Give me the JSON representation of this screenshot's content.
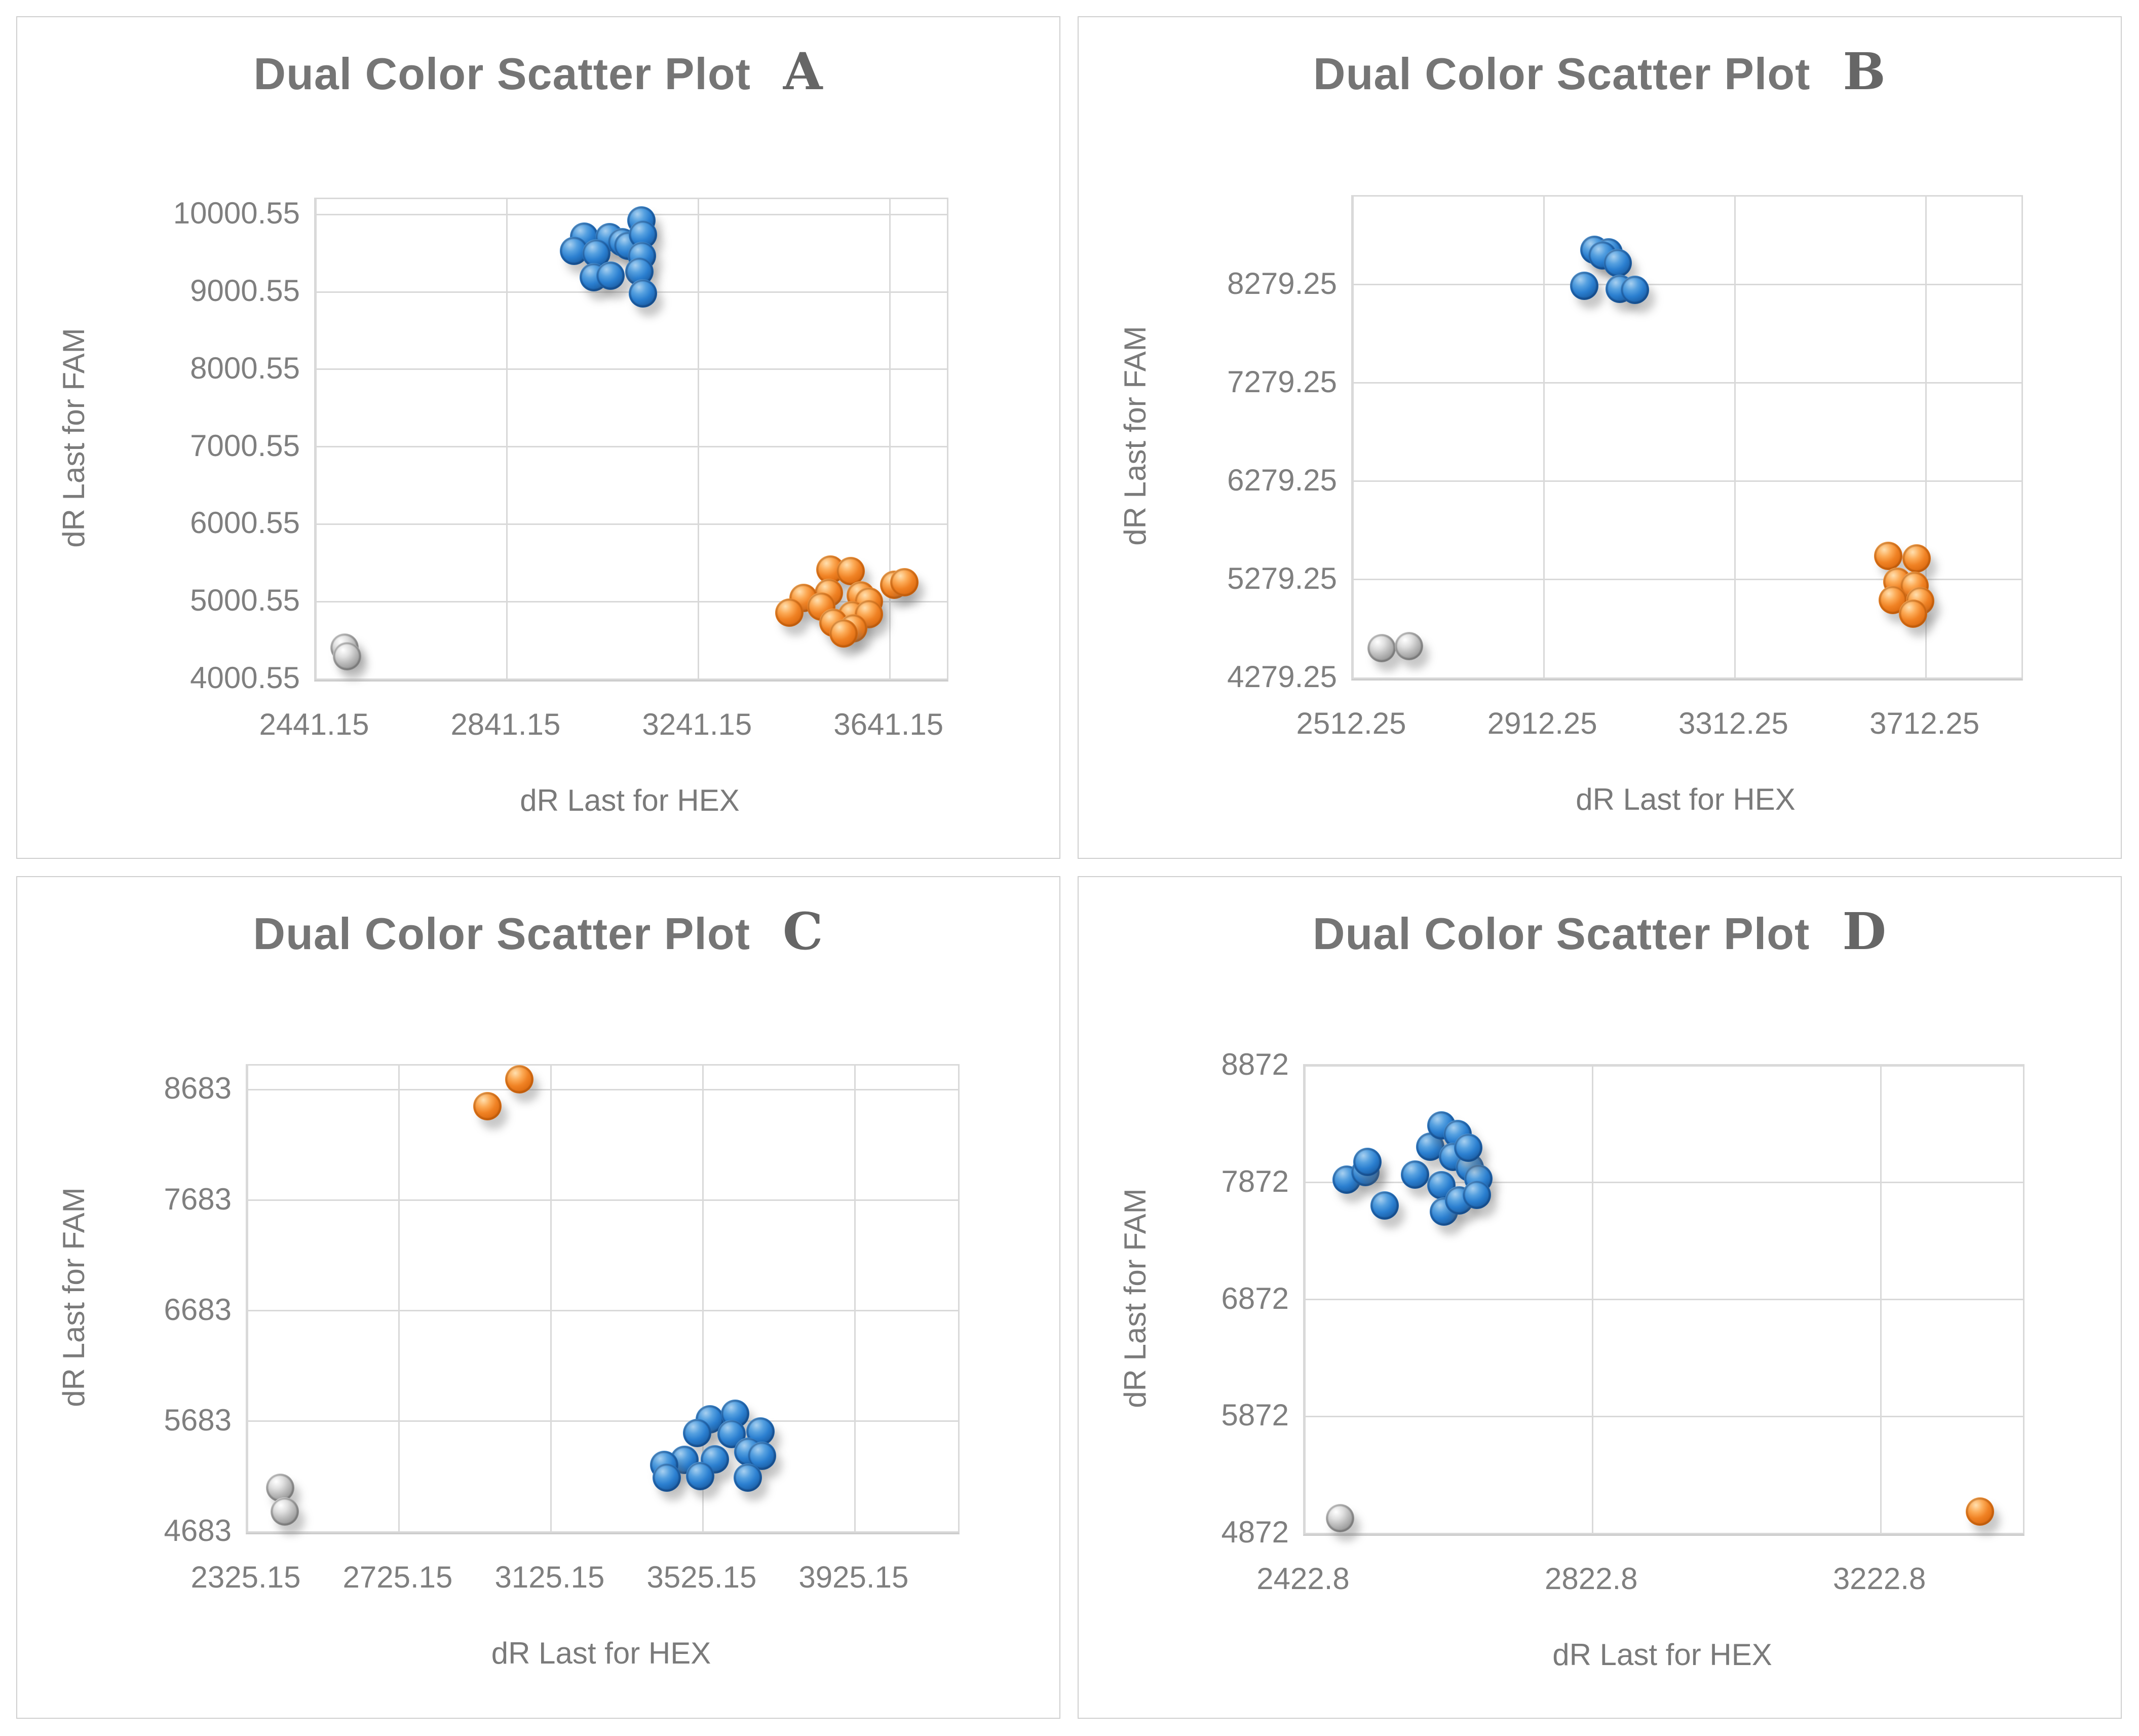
{
  "colors": {
    "blue": "#2E75B6",
    "orange": "#ED7D31",
    "gray": "#A6A6A6",
    "gridline": "#D9D9D9",
    "text": "#7F7F7F"
  },
  "chart_data": [
    {
      "type": "scatter",
      "title": "Dual Color Scatter Plot",
      "panel_letter": "A",
      "xlabel": "dR Last for HEX",
      "ylabel": "dR Last for FAM",
      "xlim": [
        2441.15,
        3760
      ],
      "ylim": [
        4000.55,
        10200
      ],
      "grid": true,
      "legend_position": "none",
      "xticks": [
        {
          "value": 2441.15,
          "label": "2441.15"
        },
        {
          "value": 2841.15,
          "label": "2841.15"
        },
        {
          "value": 3241.15,
          "label": "3241.15"
        },
        {
          "value": 3641.15,
          "label": "3641.15"
        }
      ],
      "yticks": [
        {
          "value": 4000.55,
          "label": "4000.55"
        },
        {
          "value": 5000.55,
          "label": "5000.55"
        },
        {
          "value": 6000.55,
          "label": "6000.55"
        },
        {
          "value": 7000.55,
          "label": "7000.55"
        },
        {
          "value": 8000.55,
          "label": "8000.55"
        },
        {
          "value": 9000.55,
          "label": "9000.55"
        },
        {
          "value": 10000.55,
          "label": "10000.55"
        }
      ],
      "series": [
        {
          "name": "gray",
          "color": "#A6A6A6",
          "points": [
            [
              2502,
              4409
            ],
            [
              2507,
              4292
            ]
          ]
        },
        {
          "name": "orange",
          "color": "#ED7D31",
          "points": [
            [
              3517,
              5415
            ],
            [
              3559,
              5395
            ],
            [
              3513,
              5112
            ],
            [
              3460,
              5046
            ],
            [
              3431,
              4856
            ],
            [
              3497,
              4935
            ],
            [
              3580,
              5079
            ],
            [
              3597,
              5000
            ],
            [
              3562,
              4824
            ],
            [
              3597,
              4837
            ],
            [
              3523,
              4724
            ],
            [
              3564,
              4652
            ],
            [
              3544,
              4593
            ],
            [
              3650,
              5218
            ],
            [
              3671,
              5251
            ]
          ]
        },
        {
          "name": "blue",
          "color": "#2E75B6",
          "points": [
            [
              3002,
              9715
            ],
            [
              3055,
              9709
            ],
            [
              2981,
              9534
            ],
            [
              3028,
              9501
            ],
            [
              3082,
              9641
            ],
            [
              3094,
              9598
            ],
            [
              3122,
              9923
            ],
            [
              3125,
              9741
            ],
            [
              3123,
              9469
            ],
            [
              3118,
              9262
            ],
            [
              3022,
              9190
            ],
            [
              3057,
              9210
            ],
            [
              3125,
              8983
            ]
          ]
        }
      ]
    },
    {
      "type": "scatter",
      "title": "Dual Color Scatter Plot",
      "panel_letter": "B",
      "xlabel": "dR Last for HEX",
      "ylabel": "dR Last for FAM",
      "xlim": [
        2512.25,
        3912
      ],
      "ylim": [
        4279.25,
        9175
      ],
      "grid": true,
      "legend_position": "none",
      "xticks": [
        {
          "value": 2512.25,
          "label": "2512.25"
        },
        {
          "value": 2912.25,
          "label": "2912.25"
        },
        {
          "value": 3312.25,
          "label": "3312.25"
        },
        {
          "value": 3712.25,
          "label": "3712.25"
        }
      ],
      "yticks": [
        {
          "value": 4279.25,
          "label": "4279.25"
        },
        {
          "value": 5279.25,
          "label": "5279.25"
        },
        {
          "value": 6279.25,
          "label": "6279.25"
        },
        {
          "value": 7279.25,
          "label": "7279.25"
        },
        {
          "value": 8279.25,
          "label": "8279.25"
        }
      ],
      "series": [
        {
          "name": "gray",
          "color": "#A6A6A6",
          "points": [
            [
              2573,
              4581
            ],
            [
              2630,
              4605
            ]
          ]
        },
        {
          "name": "orange",
          "color": "#ED7D31",
          "points": [
            [
              3633,
              5520
            ],
            [
              3692,
              5495
            ],
            [
              3652,
              5260
            ],
            [
              3688,
              5215
            ],
            [
              3643,
              5075
            ],
            [
              3700,
              5060
            ],
            [
              3685,
              4935
            ]
          ]
        },
        {
          "name": "blue",
          "color": "#2E75B6",
          "points": [
            [
              3018,
              8633
            ],
            [
              3048,
              8610
            ],
            [
              3035,
              8576
            ],
            [
              3067,
              8498
            ],
            [
              2997,
              8269
            ],
            [
              3071,
              8237
            ],
            [
              3103,
              8227
            ]
          ]
        }
      ]
    },
    {
      "type": "scatter",
      "title": "Dual Color Scatter Plot",
      "panel_letter": "C",
      "xlabel": "dR Last for HEX",
      "ylabel": "dR Last for FAM",
      "xlim": [
        2325.15,
        4196
      ],
      "ylim": [
        4683,
        8900
      ],
      "grid": true,
      "legend_position": "none",
      "xticks": [
        {
          "value": 2325.15,
          "label": "2325.15"
        },
        {
          "value": 2725.15,
          "label": "2725.15"
        },
        {
          "value": 3125.15,
          "label": "3125.15"
        },
        {
          "value": 3525.15,
          "label": "3525.15"
        },
        {
          "value": 3925.15,
          "label": "3925.15"
        }
      ],
      "yticks": [
        {
          "value": 4683,
          "label": "4683"
        },
        {
          "value": 5683,
          "label": "5683"
        },
        {
          "value": 6683,
          "label": "6683"
        },
        {
          "value": 7683,
          "label": "7683"
        },
        {
          "value": 8683,
          "label": "8683"
        }
      ],
      "series": [
        {
          "name": "gray",
          "color": "#A6A6A6",
          "points": [
            [
              2412,
              5082
            ],
            [
              2424,
              4866
            ]
          ]
        },
        {
          "name": "orange",
          "color": "#ED7D31",
          "points": [
            [
              3041,
              8775
            ],
            [
              2957,
              8535
            ]
          ]
        },
        {
          "name": "blue",
          "color": "#2E75B6",
          "points": [
            [
              3542,
              5700
            ],
            [
              3609,
              5752
            ],
            [
              3509,
              5577
            ],
            [
              3600,
              5568
            ],
            [
              3676,
              5591
            ],
            [
              3476,
              5334
            ],
            [
              3556,
              5339
            ],
            [
              3644,
              5408
            ],
            [
              3680,
              5371
            ],
            [
              3422,
              5288
            ],
            [
              3429,
              5173
            ],
            [
              3517,
              5187
            ],
            [
              3642,
              5173
            ]
          ]
        }
      ]
    },
    {
      "type": "scatter",
      "title": "Dual Color Scatter Plot",
      "panel_letter": "D",
      "xlabel": "dR Last for HEX",
      "ylabel": "dR Last for FAM",
      "xlim": [
        2422.8,
        3420
      ],
      "ylim": [
        4872,
        8872
      ],
      "grid": true,
      "legend_position": "none",
      "xticks": [
        {
          "value": 2422.8,
          "label": "2422.8"
        },
        {
          "value": 2822.8,
          "label": "2822.8"
        },
        {
          "value": 3222.8,
          "label": "3222.8"
        }
      ],
      "yticks": [
        {
          "value": 4872,
          "label": "4872"
        },
        {
          "value": 5872,
          "label": "5872"
        },
        {
          "value": 6872,
          "label": "6872"
        },
        {
          "value": 7872,
          "label": "7872"
        },
        {
          "value": 8872,
          "label": "8872"
        }
      ],
      "series": [
        {
          "name": "gray",
          "color": "#A6A6A6",
          "points": [
            [
              2472,
              5000
            ]
          ]
        },
        {
          "name": "orange",
          "color": "#ED7D31",
          "points": [
            [
              3360,
              5060
            ]
          ]
        },
        {
          "name": "blue",
          "color": "#2E75B6",
          "points": [
            [
              2481,
              7897
            ],
            [
              2507,
              7962
            ],
            [
              2510,
              8048
            ],
            [
              2534,
              7677
            ],
            [
              2576,
              7940
            ],
            [
              2597,
              8178
            ],
            [
              2613,
              8359
            ],
            [
              2635,
              8286
            ],
            [
              2629,
              8092
            ],
            [
              2613,
              7850
            ],
            [
              2616,
              7626
            ],
            [
              2637,
              7721
            ],
            [
              2652,
              8000
            ],
            [
              2664,
              7905
            ],
            [
              2650,
              8172
            ],
            [
              2662,
              7768
            ]
          ]
        }
      ]
    }
  ]
}
